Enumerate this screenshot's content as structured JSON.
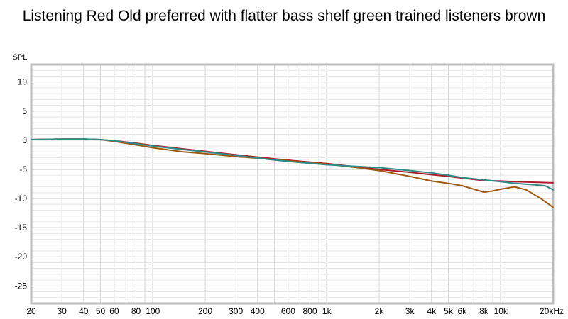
{
  "chart_data": {
    "type": "line",
    "title": "Listening Red Old preferred with flatter bass shelf green trained listeners brown",
    "ylabel": "SPL",
    "xlabel": "",
    "xscale": "log",
    "xlim": [
      20,
      20000
    ],
    "ylim": [
      -28,
      13
    ],
    "grid": true,
    "legend": "none",
    "x_tick_values": [
      20,
      30,
      40,
      50,
      60,
      80,
      100,
      200,
      300,
      400,
      600,
      800,
      1000,
      2000,
      3000,
      4000,
      5000,
      6000,
      8000,
      10000,
      20000
    ],
    "x_tick_labels": [
      "20",
      "30",
      "40",
      "50",
      "60",
      "80",
      "100",
      "200",
      "300",
      "400",
      "600",
      "800",
      "1k",
      "2k",
      "3k",
      "4k",
      "5k",
      "6k",
      "8k",
      "10k",
      "20kHz"
    ],
    "y_tick_values": [
      10,
      5,
      0,
      -5,
      -10,
      -15,
      -20,
      -25
    ],
    "y_tick_labels": [
      "10",
      "5",
      "0",
      "-5",
      "-10",
      "-15",
      "-20",
      "-25"
    ],
    "series": [
      {
        "color": "#b0182c",
        "points": [
          [
            20,
            0.1
          ],
          [
            30,
            0.2
          ],
          [
            40,
            0.2
          ],
          [
            50,
            0.1
          ],
          [
            60,
            -0.1
          ],
          [
            80,
            -0.5
          ],
          [
            100,
            -0.9
          ],
          [
            150,
            -1.5
          ],
          [
            200,
            -1.9
          ],
          [
            300,
            -2.5
          ],
          [
            500,
            -3.2
          ],
          [
            700,
            -3.6
          ],
          [
            1000,
            -4.0
          ],
          [
            1500,
            -4.6
          ],
          [
            2000,
            -5.0
          ],
          [
            3000,
            -5.5
          ],
          [
            4000,
            -5.9
          ],
          [
            5000,
            -6.2
          ],
          [
            6000,
            -6.5
          ],
          [
            8000,
            -6.9
          ],
          [
            10000,
            -7.0
          ],
          [
            12000,
            -7.1
          ],
          [
            15000,
            -7.2
          ],
          [
            20000,
            -7.3
          ]
        ]
      },
      {
        "color": "#a0580f",
        "points": [
          [
            20,
            0.1
          ],
          [
            30,
            0.2
          ],
          [
            40,
            0.2
          ],
          [
            50,
            0.1
          ],
          [
            60,
            -0.2
          ],
          [
            80,
            -0.8
          ],
          [
            100,
            -1.3
          ],
          [
            150,
            -2.0
          ],
          [
            200,
            -2.3
          ],
          [
            300,
            -2.8
          ],
          [
            500,
            -3.3
          ],
          [
            700,
            -3.7
          ],
          [
            1000,
            -4.1
          ],
          [
            1500,
            -4.7
          ],
          [
            2000,
            -5.2
          ],
          [
            3000,
            -6.2
          ],
          [
            4000,
            -7.0
          ],
          [
            5000,
            -7.4
          ],
          [
            6000,
            -7.8
          ],
          [
            7000,
            -8.4
          ],
          [
            8000,
            -8.9
          ],
          [
            9000,
            -8.7
          ],
          [
            10000,
            -8.4
          ],
          [
            12000,
            -8.0
          ],
          [
            14000,
            -8.5
          ],
          [
            17000,
            -10.0
          ],
          [
            20000,
            -11.5
          ]
        ]
      },
      {
        "color": "#2e8b86",
        "points": [
          [
            20,
            0.1
          ],
          [
            30,
            0.2
          ],
          [
            40,
            0.2
          ],
          [
            50,
            0.1
          ],
          [
            60,
            -0.1
          ],
          [
            80,
            -0.6
          ],
          [
            100,
            -1.0
          ],
          [
            150,
            -1.6
          ],
          [
            200,
            -2.0
          ],
          [
            300,
            -2.6
          ],
          [
            500,
            -3.4
          ],
          [
            700,
            -3.8
          ],
          [
            1000,
            -4.2
          ],
          [
            1500,
            -4.5
          ],
          [
            2000,
            -4.7
          ],
          [
            3000,
            -5.2
          ],
          [
            4000,
            -5.6
          ],
          [
            5000,
            -6.0
          ],
          [
            6000,
            -6.4
          ],
          [
            8000,
            -6.8
          ],
          [
            10000,
            -7.1
          ],
          [
            12000,
            -7.4
          ],
          [
            15000,
            -7.6
          ],
          [
            18000,
            -7.8
          ],
          [
            20000,
            -8.5
          ]
        ]
      }
    ]
  }
}
